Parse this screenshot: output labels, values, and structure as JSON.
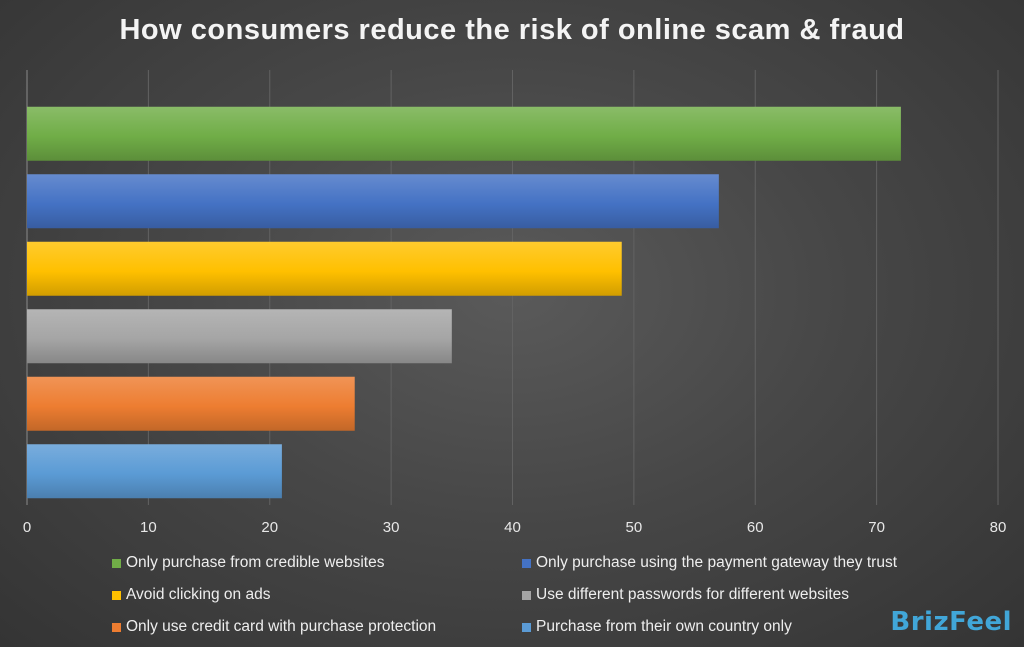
{
  "chart_data": {
    "type": "bar",
    "orientation": "horizontal",
    "title": "How consumers reduce the risk of online scam & fraud",
    "xlim": [
      0,
      80
    ],
    "x_ticks": [
      "0",
      "10",
      "20",
      "30",
      "40",
      "50",
      "60",
      "70",
      "80"
    ],
    "grid": true,
    "legend_position": "bottom",
    "series": [
      {
        "name": "Only purchase from credible websites",
        "value": 72,
        "color": "#70ad47"
      },
      {
        "name": "Only purchase using the payment gateway they trust",
        "value": 57,
        "color": "#4472c4"
      },
      {
        "name": "Avoid clicking on ads",
        "value": 49,
        "color": "#ffc000"
      },
      {
        "name": "Use different passwords for different websites",
        "value": 35,
        "color": "#a5a5a5"
      },
      {
        "name": "Only use credit card with purchase protection",
        "value": 27,
        "color": "#ed7d31"
      },
      {
        "name": "Purchase from their own country only",
        "value": 21,
        "color": "#5b9bd5"
      }
    ]
  },
  "brand": {
    "logo_text": "BrizFeel"
  }
}
